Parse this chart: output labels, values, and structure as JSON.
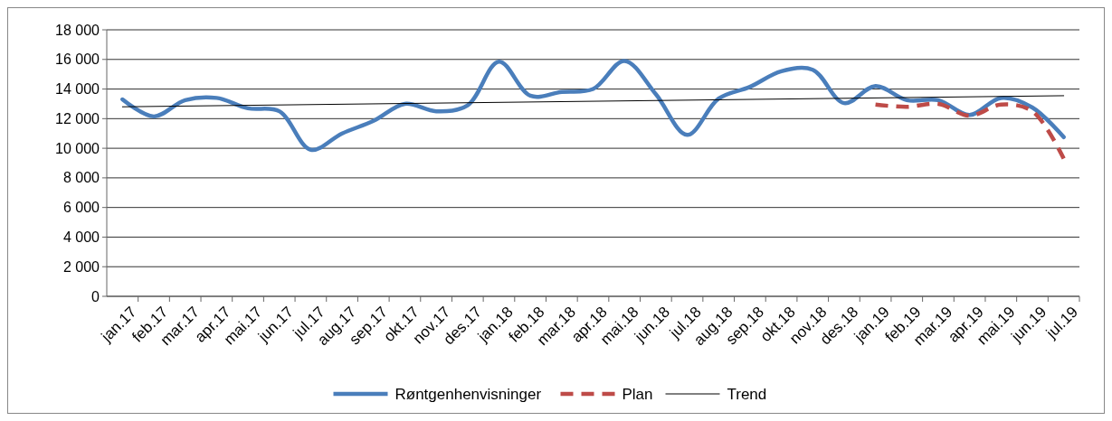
{
  "chart_data": {
    "type": "line",
    "categories": [
      "jan.17",
      "feb.17",
      "mar.17",
      "apr.17",
      "mai.17",
      "jun.17",
      "jul.17",
      "aug.17",
      "sep.17",
      "okt.17",
      "nov.17",
      "des.17",
      "jan.18",
      "feb.18",
      "mar.18",
      "apr.18",
      "mai.18",
      "jun.18",
      "jul.18",
      "aug.18",
      "sep.18",
      "okt.18",
      "nov.18",
      "des.18",
      "jan.19",
      "feb.19",
      "mar.19",
      "apr.19",
      "mai.19",
      "jun.19",
      "jul.19"
    ],
    "series": [
      {
        "name": "Røntgenhenvisninger",
        "color": "#4a7ebb",
        "line_style": "solid",
        "values": [
          13300,
          12150,
          13250,
          13400,
          12700,
          12500,
          9900,
          11000,
          11850,
          13000,
          12500,
          12900,
          15850,
          13550,
          13800,
          14000,
          15900,
          13650,
          10900,
          13350,
          14150,
          15200,
          15300,
          13050,
          14200,
          13250,
          13250,
          12250,
          13400,
          12750,
          10750
        ]
      },
      {
        "name": "Plan",
        "color": "#be4b48",
        "line_style": "dashed",
        "values": [
          null,
          null,
          null,
          null,
          null,
          null,
          null,
          null,
          null,
          null,
          null,
          null,
          null,
          null,
          null,
          null,
          null,
          null,
          null,
          null,
          null,
          null,
          null,
          null,
          12950,
          12800,
          13000,
          12200,
          12950,
          12500,
          9300
        ]
      },
      {
        "name": "Trend",
        "color": "#000000",
        "line_style": "solid",
        "x": [
          "jan.17",
          "jul.19"
        ],
        "values": [
          12800,
          13550
        ]
      }
    ],
    "ylim": [
      0,
      18000
    ],
    "yticks": [
      {
        "value": 0,
        "label": "0"
      },
      {
        "value": 2000,
        "label": "2 000"
      },
      {
        "value": 4000,
        "label": "4 000"
      },
      {
        "value": 6000,
        "label": "6 000"
      },
      {
        "value": 8000,
        "label": "8 000"
      },
      {
        "value": 10000,
        "label": "10 000"
      },
      {
        "value": 12000,
        "label": "12 000"
      },
      {
        "value": 14000,
        "label": "14 000"
      },
      {
        "value": 16000,
        "label": "16 000"
      },
      {
        "value": 18000,
        "label": "18 000"
      }
    ],
    "grid": "y",
    "legend": "bottom",
    "marker": "none"
  }
}
